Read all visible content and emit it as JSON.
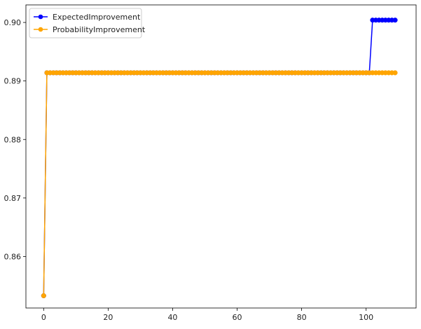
{
  "chart_data": {
    "type": "line",
    "title": "",
    "xlabel": "",
    "ylabel": "",
    "xlim": [
      -5.5,
      115.5
    ],
    "ylim": [
      0.8512,
      0.903
    ],
    "x_ticks": [
      0,
      20,
      40,
      60,
      80,
      100
    ],
    "y_ticks": [
      0.86,
      0.87,
      0.88,
      0.89,
      0.9
    ],
    "x_tick_labels": [
      "0",
      "20",
      "40",
      "60",
      "80",
      "100"
    ],
    "y_tick_labels": [
      "0.86",
      "0.87",
      "0.88",
      "0.89",
      "0.90"
    ],
    "legend_position": "top-left",
    "grid": false,
    "n_points": 110,
    "series": [
      {
        "name": "ExpectedImprovement",
        "color": "#0000ff",
        "marker": "circle",
        "segments": [
          {
            "from": 0,
            "to": 0,
            "value": 0.8533
          },
          {
            "from": 1,
            "to": 101,
            "value": 0.8914
          },
          {
            "from": 102,
            "to": 109,
            "value": 0.9004
          }
        ]
      },
      {
        "name": "ProbabilityImprovement",
        "color": "#ffa500",
        "marker": "circle",
        "segments": [
          {
            "from": 0,
            "to": 0,
            "value": 0.8533
          },
          {
            "from": 1,
            "to": 109,
            "value": 0.8914
          }
        ]
      }
    ]
  }
}
